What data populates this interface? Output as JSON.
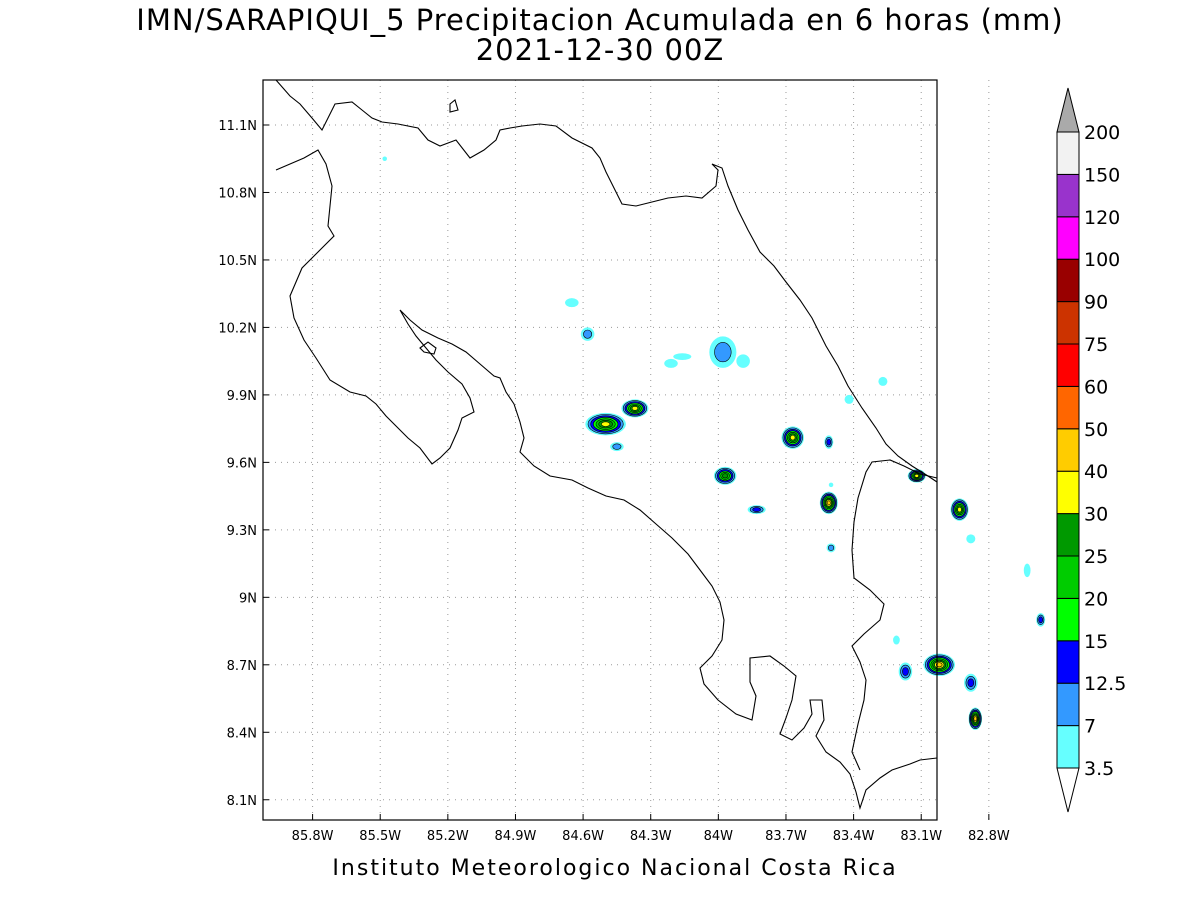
{
  "map": {
    "title": "IMN/SARAPIQUI_5 Precipitacion Acumulada en 6 horas (mm)",
    "subtitle": "2021-12-30 00Z",
    "footer": "Instituto Meteorologico Nacional Costa Rica",
    "lon_range": [
      -86.02,
      -83.03
    ],
    "lat_range": [
      8.01,
      11.3
    ],
    "x_ticks": [
      {
        "lon": -85.8,
        "label": "85.8W"
      },
      {
        "lon": -85.5,
        "label": "85.5W"
      },
      {
        "lon": -85.2,
        "label": "85.2W"
      },
      {
        "lon": -84.9,
        "label": "84.9W"
      },
      {
        "lon": -84.6,
        "label": "84.6W"
      },
      {
        "lon": -84.3,
        "label": "84.3W"
      },
      {
        "lon": -84.0,
        "label": "84W"
      },
      {
        "lon": -83.7,
        "label": "83.7W"
      },
      {
        "lon": -83.4,
        "label": "83.4W"
      },
      {
        "lon": -83.1,
        "label": "83.1W"
      },
      {
        "lon": -82.8,
        "label": "82.8W"
      }
    ],
    "y_ticks": [
      {
        "lat": 11.1,
        "label": "11.1N"
      },
      {
        "lat": 10.8,
        "label": "10.8N"
      },
      {
        "lat": 10.5,
        "label": "10.5N"
      },
      {
        "lat": 10.2,
        "label": "10.2N"
      },
      {
        "lat": 9.9,
        "label": "9.9N"
      },
      {
        "lat": 9.6,
        "label": "9.6N"
      },
      {
        "lat": 9.3,
        "label": "9.3N"
      },
      {
        "lat": 9.0,
        "label": "9N"
      },
      {
        "lat": 8.7,
        "label": "8.7N"
      },
      {
        "lat": 8.4,
        "label": "8.4N"
      },
      {
        "lat": 8.1,
        "label": "8.1N"
      }
    ],
    "grid": true
  },
  "colorbar": {
    "orientation": "vertical, right",
    "levels": [
      "3.5",
      "7",
      "12.5",
      "15",
      "20",
      "25",
      "30",
      "40",
      "50",
      "60",
      "75",
      "90",
      "100",
      "120",
      "150",
      "200"
    ],
    "colors": [
      "#ffffff",
      "#66ffff",
      "#3399ff",
      "#0000ff",
      "#00ff00",
      "#00cc00",
      "#009900",
      "#ffff00",
      "#ffcc00",
      "#ff6600",
      "#ff0000",
      "#cc3300",
      "#990000",
      "#ff00ff",
      "#9933cc",
      "#f2f2f2",
      "#aaaaaa"
    ]
  },
  "precip_cells": [
    {
      "lon": -84.58,
      "lat": 10.17,
      "rx": 0.03,
      "ry": 0.03,
      "max": "7"
    },
    {
      "lon": -84.65,
      "lat": 10.31,
      "rx": 0.03,
      "ry": 0.02,
      "max": "3.5"
    },
    {
      "lon": -84.5,
      "lat": 9.77,
      "rx": 0.09,
      "ry": 0.05,
      "max": "30"
    },
    {
      "lon": -84.37,
      "lat": 9.84,
      "rx": 0.06,
      "ry": 0.04,
      "max": "30"
    },
    {
      "lon": -84.45,
      "lat": 9.67,
      "rx": 0.03,
      "ry": 0.02,
      "max": "7"
    },
    {
      "lon": -83.98,
      "lat": 10.09,
      "rx": 0.06,
      "ry": 0.07,
      "max": "7"
    },
    {
      "lon": -84.16,
      "lat": 10.07,
      "rx": 0.04,
      "ry": 0.015,
      "max": "3.5"
    },
    {
      "lon": -83.89,
      "lat": 10.05,
      "rx": 0.03,
      "ry": 0.03,
      "max": "3.5"
    },
    {
      "lon": -83.97,
      "lat": 9.54,
      "rx": 0.05,
      "ry": 0.04,
      "max": "25"
    },
    {
      "lon": -83.83,
      "lat": 9.39,
      "rx": 0.04,
      "ry": 0.02,
      "max": "12.5"
    },
    {
      "lon": -83.67,
      "lat": 9.71,
      "rx": 0.05,
      "ry": 0.05,
      "max": "30"
    },
    {
      "lon": -83.51,
      "lat": 9.69,
      "rx": 0.02,
      "ry": 0.03,
      "max": "12.5"
    },
    {
      "lon": -83.51,
      "lat": 9.42,
      "rx": 0.04,
      "ry": 0.05,
      "max": "40"
    },
    {
      "lon": -83.5,
      "lat": 9.22,
      "rx": 0.02,
      "ry": 0.02,
      "max": "7"
    },
    {
      "lon": -83.12,
      "lat": 9.54,
      "rx": 0.04,
      "ry": 0.03,
      "max": "30"
    },
    {
      "lon": -82.93,
      "lat": 9.39,
      "rx": 0.04,
      "ry": 0.05,
      "max": "30"
    },
    {
      "lon": -82.88,
      "lat": 9.26,
      "rx": 0.02,
      "ry": 0.02,
      "max": "3.5"
    },
    {
      "lon": -83.02,
      "lat": 8.7,
      "rx": 0.07,
      "ry": 0.05,
      "max": "40"
    },
    {
      "lon": -83.17,
      "lat": 8.67,
      "rx": 0.03,
      "ry": 0.04,
      "max": "12.5"
    },
    {
      "lon": -82.88,
      "lat": 8.62,
      "rx": 0.03,
      "ry": 0.04,
      "max": "12.5"
    },
    {
      "lon": -82.86,
      "lat": 8.46,
      "rx": 0.03,
      "ry": 0.05,
      "max": "40"
    },
    {
      "lon": -82.57,
      "lat": 8.9,
      "rx": 0.02,
      "ry": 0.03,
      "max": "12.5"
    },
    {
      "lon": -82.63,
      "lat": 9.12,
      "rx": 0.015,
      "ry": 0.03,
      "max": "3.5"
    },
    {
      "lon": -83.21,
      "lat": 8.81,
      "rx": 0.015,
      "ry": 0.02,
      "max": "3.5"
    },
    {
      "lon": -83.5,
      "lat": 9.5,
      "rx": 0.01,
      "ry": 0.01,
      "max": "3.5"
    },
    {
      "lon": -83.42,
      "lat": 9.88,
      "rx": 0.02,
      "ry": 0.02,
      "max": "3.5"
    },
    {
      "lon": -83.27,
      "lat": 9.96,
      "rx": 0.02,
      "ry": 0.02,
      "max": "3.5"
    },
    {
      "lon": -85.48,
      "lat": 10.95,
      "rx": 0.01,
      "ry": 0.01,
      "max": "3.5"
    },
    {
      "lon": -84.21,
      "lat": 10.04,
      "rx": 0.03,
      "ry": 0.02,
      "max": "3.5"
    }
  ]
}
